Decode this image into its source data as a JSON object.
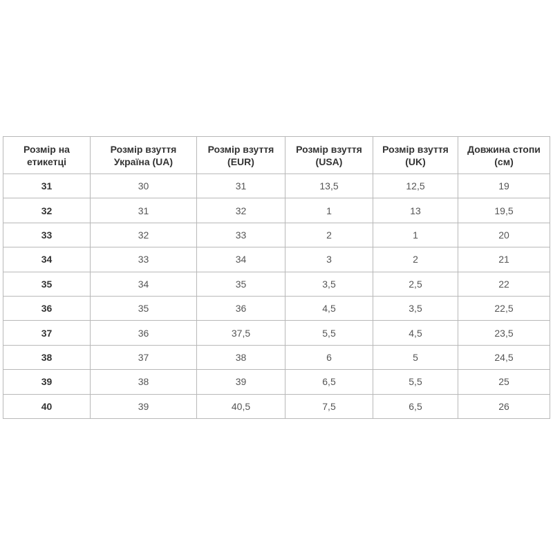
{
  "table": {
    "headers": [
      "Розмір на етикетці",
      "Розмір взуття Україна (UA)",
      "Розмір взуття (EUR)",
      "Розмір взуття (USA)",
      "Розмір взуття (UK)",
      "Довжина стопи (см)"
    ],
    "rows": [
      [
        "31",
        "30",
        "31",
        "13,5",
        "12,5",
        "19"
      ],
      [
        "32",
        "31",
        "32",
        "1",
        "13",
        "19,5"
      ],
      [
        "33",
        "32",
        "33",
        "2",
        "1",
        "20"
      ],
      [
        "34",
        "33",
        "34",
        "3",
        "2",
        "21"
      ],
      [
        "35",
        "34",
        "35",
        "3,5",
        "2,5",
        "22"
      ],
      [
        "36",
        "35",
        "36",
        "4,5",
        "3,5",
        "22,5"
      ],
      [
        "37",
        "36",
        "37,5",
        "5,5",
        "4,5",
        "23,5"
      ],
      [
        "38",
        "37",
        "38",
        "6",
        "5",
        "24,5"
      ],
      [
        "39",
        "38",
        "39",
        "6,5",
        "5,5",
        "25"
      ],
      [
        "40",
        "39",
        "40,5",
        "7,5",
        "6,5",
        "26"
      ]
    ]
  }
}
